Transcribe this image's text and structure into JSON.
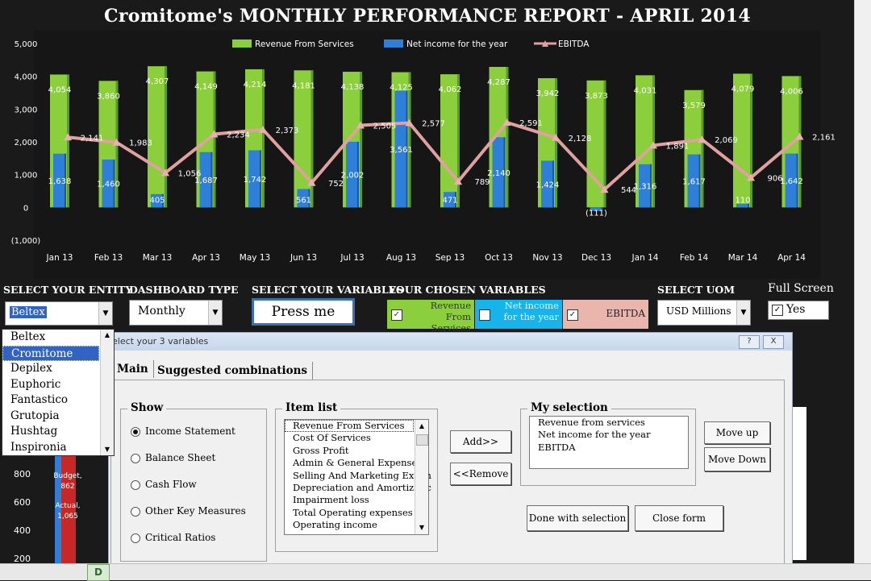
{
  "title": "Cromitome's MONTHLY PERFORMANCE REPORT - APRIL 2014",
  "chart_data": {
    "type": "bar",
    "categories": [
      "Jan 13",
      "Feb 13",
      "Mar 13",
      "Apr 13",
      "May 13",
      "Jun 13",
      "Jul 13",
      "Aug 13",
      "Sep 13",
      "Oct 13",
      "Nov 13",
      "Dec 13",
      "Jan 14",
      "Feb 14",
      "Mar 14",
      "Apr 14"
    ],
    "series": [
      {
        "name": "Revenue From Services",
        "type": "bar",
        "color": "#8ccf3c",
        "values": [
          4054,
          3860,
          4307,
          4149,
          4214,
          4181,
          4138,
          4125,
          4062,
          4287,
          3942,
          3873,
          4031,
          3579,
          4079,
          4006
        ]
      },
      {
        "name": "Net income for the year",
        "type": "bar",
        "color": "#2e7fd8",
        "values": [
          1638,
          1460,
          405,
          1687,
          1742,
          561,
          2002,
          3561,
          471,
          2140,
          1424,
          -111,
          1316,
          1617,
          110,
          1642
        ]
      },
      {
        "name": "EBITDA",
        "type": "line",
        "color": "#e0a0a0",
        "values": [
          2141,
          1983,
          1056,
          2234,
          2373,
          752,
          2505,
          2577,
          789,
          2591,
          2128,
          544,
          1891,
          2069,
          906,
          2161
        ]
      }
    ],
    "net_labels": [
      "1,638",
      "1,460",
      "405",
      "1,687",
      "1,742",
      "561",
      "2,002",
      "3,561",
      "471",
      "2,140",
      "1,424",
      "(111)",
      "1,316",
      "1,617",
      "110",
      "1,642"
    ],
    "rev_labels": [
      "4,054",
      "3,860",
      "4,307",
      "4,149",
      "4,214",
      "4,181",
      "4,138",
      "4,125",
      "4,062",
      "4,287",
      "3,942",
      "3,873",
      "4,031",
      "3,579",
      "4,079",
      "4,006"
    ],
    "ebitda_labels": [
      "2,141",
      "1,983",
      "1,056",
      "2,234",
      "2,373",
      "752",
      "2,505",
      "2,577",
      "789",
      "2,591",
      "2,128",
      "544",
      "1,891",
      "2,069",
      "906",
      "2,161"
    ],
    "y_ticks": [
      "5,000",
      "4,000",
      "3,000",
      "2,000",
      "1,000",
      "0",
      "(1,000)"
    ],
    "y_tick_values": [
      5000,
      4000,
      3000,
      2000,
      1000,
      0,
      -1000
    ],
    "ylim": [
      -1000,
      5000
    ],
    "legend_position": "top"
  },
  "controls": {
    "entity_label": "SELECT YOUR ENTITY",
    "entity_value": "Beltex",
    "dashboard_label": "DASHBOARD TYPE",
    "dashboard_value": "Monthly",
    "variables_label": "SELECT YOUR VARIABLES",
    "press_me": "Press me",
    "chosen_label": "YOUR CHOSEN VARIABLES",
    "chosen": [
      {
        "text": "Revenue From Services",
        "color": "#8ccf3c"
      },
      {
        "text": "Net income for the year",
        "color": "#16b4ea"
      },
      {
        "text": "EBITDA",
        "color": "#e9b5ad"
      }
    ],
    "uom_label": "SELECT UOM",
    "uom_value": "USD Millions",
    "fullscreen_label": "Full Screen",
    "fullscreen_value": "Yes"
  },
  "entity_dropdown": [
    "Beltex",
    "Cromitome",
    "Depilex",
    "Euphoric",
    "Fantastico",
    "Grutopia",
    "Hushtag",
    "Inspironia"
  ],
  "dialog": {
    "title": "elect your 3 variables",
    "help": "?",
    "close": "X",
    "tabs": [
      "Main",
      "Suggested combinations"
    ],
    "show_title": "Show",
    "show_options": [
      "Income Statement",
      "Balance Sheet",
      "Cash Flow",
      "Other Key Measures",
      "Critical Ratios"
    ],
    "item_list_title": "Item list",
    "items": [
      "Revenue From Services",
      "Cost Of Services",
      "Gross Profit",
      "Admin & General  Expenses",
      "Selling And Marketing Expen",
      "Depreciation and Amortizatic",
      "Impairment loss",
      "Total Operating expenses",
      "Operating income"
    ],
    "add": "Add>>",
    "remove": "<<Remove",
    "my_selection_title": "My selection",
    "selection": [
      "Revenue from services",
      "Net income for the year",
      "EBITDA"
    ],
    "move_up": "Move up",
    "move_down": "Move Down",
    "done": "Done with selection",
    "close_form": "Close form"
  },
  "left_chart": {
    "ticks": [
      "800",
      "600",
      "400",
      "200"
    ],
    "budget_label": "Budget,",
    "budget_value": "862",
    "actual_label": "Actual,",
    "actual_value": "1,065"
  },
  "sheet_tab": "D"
}
